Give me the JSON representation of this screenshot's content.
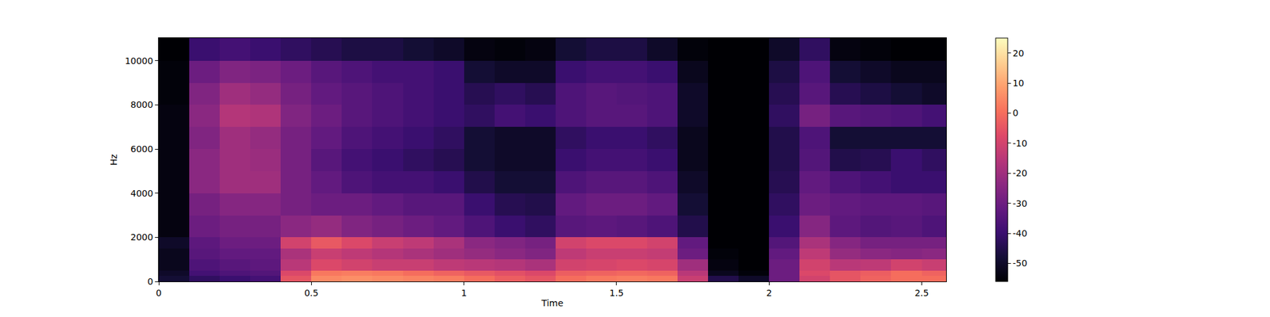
{
  "chart_data": {
    "type": "heatmap",
    "x_label": "Time",
    "y_label": "Hz",
    "xlim": [
      0,
      2.58
    ],
    "ylim": [
      0,
      11025
    ],
    "xticks": [
      0,
      0.5,
      1,
      1.5,
      2,
      2.5
    ],
    "yticks": [
      0,
      2000,
      4000,
      6000,
      8000,
      10000
    ],
    "grid": false,
    "x_edges": [
      0,
      0.1,
      0.2,
      0.3,
      0.4,
      0.5,
      0.6,
      0.7,
      0.8,
      0.9,
      1.0,
      1.1,
      1.2,
      1.3,
      1.4,
      1.5,
      1.6,
      1.7,
      1.8,
      1.9,
      2.0,
      2.1,
      2.2,
      2.3,
      2.4,
      2.5,
      2.58
    ],
    "y_edges": [
      0,
      250,
      500,
      1000,
      1500,
      2000,
      3000,
      4000,
      5000,
      6000,
      7000,
      8000,
      9000,
      10000,
      11025
    ],
    "z": [
      [
        -48,
        -42,
        -40,
        -38,
        -5,
        5,
        6,
        5,
        4,
        3,
        0,
        -3,
        -5,
        0,
        2,
        3,
        2,
        -12,
        -45,
        -50,
        -30,
        -10,
        -5,
        -2,
        0,
        0
      ],
      [
        -50,
        -38,
        -36,
        -35,
        -8,
        2,
        3,
        2,
        0,
        -2,
        -4,
        -6,
        -8,
        -3,
        -2,
        -1,
        -2,
        -15,
        -52,
        -55,
        -30,
        -8,
        -5,
        -3,
        0,
        -2
      ],
      [
        -52,
        -36,
        -34,
        -33,
        -15,
        -8,
        -10,
        -12,
        -12,
        -14,
        -15,
        -16,
        -18,
        -10,
        -9,
        -8,
        -9,
        -20,
        -54,
        -56,
        -30,
        -10,
        -15,
        -14,
        -10,
        -12
      ],
      [
        -52,
        -34,
        -32,
        -32,
        -18,
        -12,
        -14,
        -16,
        -18,
        -20,
        -22,
        -24,
        -26,
        -14,
        -12,
        -12,
        -13,
        -30,
        -55,
        -56,
        -32,
        -14,
        -22,
        -24,
        -25,
        -24
      ],
      [
        -50,
        -33,
        -30,
        -30,
        -10,
        -4,
        -8,
        -12,
        -14,
        -18,
        -24,
        -26,
        -28,
        -10,
        -8,
        -8,
        -10,
        -32,
        -56,
        -56,
        -35,
        -18,
        -25,
        -28,
        -28,
        -28
      ],
      [
        -54,
        -30,
        -28,
        -28,
        -24,
        -22,
        -26,
        -28,
        -30,
        -32,
        -36,
        -40,
        -42,
        -34,
        -33,
        -34,
        -36,
        -45,
        -56,
        -56,
        -40,
        -25,
        -33,
        -35,
        -34,
        -36
      ],
      [
        -54,
        -28,
        -25,
        -25,
        -28,
        -30,
        -30,
        -32,
        -34,
        -34,
        -40,
        -44,
        -45,
        -32,
        -30,
        -30,
        -32,
        -48,
        -56,
        -56,
        -42,
        -30,
        -32,
        -33,
        -33,
        -34
      ],
      [
        -54,
        -24,
        -20,
        -20,
        -28,
        -32,
        -36,
        -38,
        -38,
        -40,
        -45,
        -48,
        -48,
        -36,
        -34,
        -34,
        -36,
        -50,
        -56,
        -56,
        -44,
        -32,
        -36,
        -38,
        -40,
        -40
      ],
      [
        -54,
        -24,
        -20,
        -21,
        -28,
        -34,
        -38,
        -40,
        -42,
        -44,
        -48,
        -50,
        -50,
        -40,
        -38,
        -38,
        -40,
        -52,
        -56,
        -56,
        -45,
        -35,
        -45,
        -44,
        -40,
        -42
      ],
      [
        -54,
        -26,
        -20,
        -22,
        -28,
        -32,
        -36,
        -38,
        -40,
        -42,
        -48,
        -50,
        -50,
        -42,
        -40,
        -40,
        -42,
        -52,
        -56,
        -56,
        -45,
        -36,
        -48,
        -48,
        -48,
        -48
      ],
      [
        -54,
        -24,
        -16,
        -17,
        -26,
        -30,
        -34,
        -36,
        -38,
        -40,
        -42,
        -38,
        -40,
        -36,
        -34,
        -34,
        -36,
        -50,
        -56,
        -56,
        -42,
        -28,
        -34,
        -35,
        -36,
        -38
      ],
      [
        -55,
        -26,
        -20,
        -22,
        -28,
        -32,
        -34,
        -36,
        -38,
        -40,
        -44,
        -42,
        -44,
        -36,
        -34,
        -35,
        -36,
        -50,
        -56,
        -56,
        -44,
        -34,
        -44,
        -46,
        -48,
        -50
      ],
      [
        -55,
        -30,
        -26,
        -27,
        -30,
        -34,
        -36,
        -38,
        -38,
        -40,
        -48,
        -50,
        -50,
        -40,
        -38,
        -38,
        -40,
        -52,
        -56,
        -56,
        -46,
        -36,
        -48,
        -50,
        -52,
        -52
      ],
      [
        -56,
        -40,
        -38,
        -40,
        -42,
        -44,
        -46,
        -46,
        -48,
        -50,
        -54,
        -55,
        -54,
        -48,
        -46,
        -46,
        -50,
        -55,
        -56,
        -56,
        -50,
        -42,
        -54,
        -55,
        -56,
        -56
      ]
    ],
    "color_range": [
      -56,
      25
    ],
    "color_ticks": [
      -50,
      -40,
      -30,
      -20,
      -10,
      0,
      10,
      20
    ]
  }
}
